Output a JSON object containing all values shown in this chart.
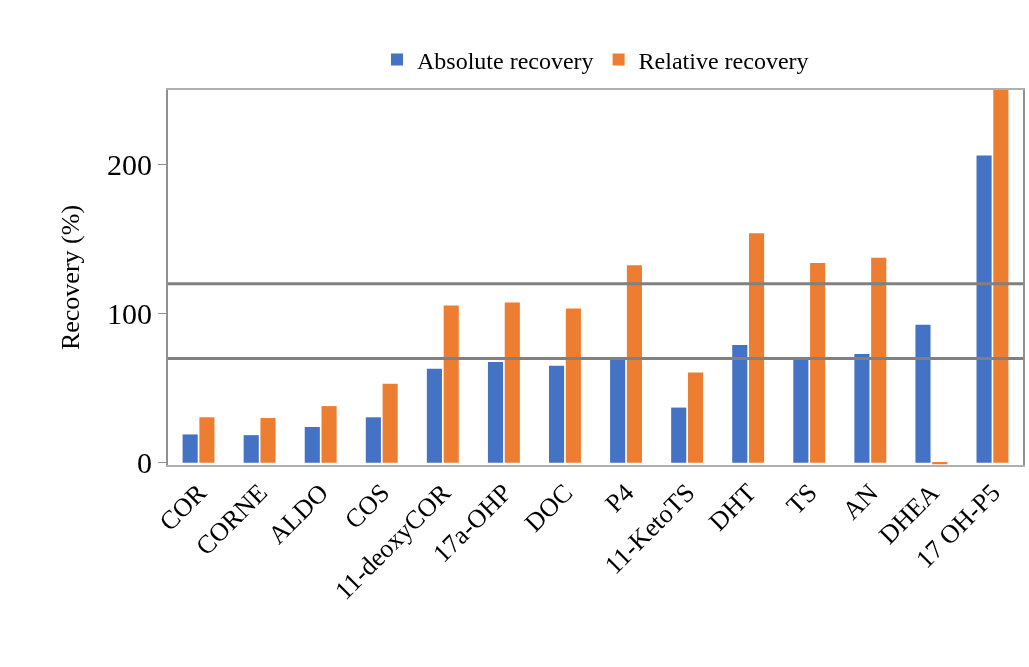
{
  "chart_data": {
    "type": "bar",
    "ylabel": "Recovery (%)",
    "categories": [
      "COR",
      "CORNE",
      "ALDO",
      "COS",
      "11-deoxyCOR",
      "17a-OHP",
      "DOC",
      "P4",
      "11-KetoTS",
      "DHT",
      "TS",
      "AN",
      "DHEA",
      "17 OH-P5"
    ],
    "series": [
      {
        "name": "Absolute recovery",
        "color": "#4472c4",
        "values": [
          19,
          18.5,
          24,
          30.5,
          63,
          67.5,
          65,
          70,
          37,
          79,
          71,
          73,
          92.5,
          206
        ]
      },
      {
        "name": "Relative recovery",
        "color": "#ed7d31",
        "values": [
          30.5,
          30,
          38,
          53,
          105.5,
          107.5,
          103.5,
          132.5,
          60.5,
          154,
          134,
          137.5,
          -1,
          250
        ]
      }
    ],
    "ylim": [
      -1.5,
      250
    ],
    "yticks": [
      0,
      100,
      200
    ],
    "grid": false,
    "legend": "top",
    "ref_lines": [
      {
        "axis": "y",
        "value": 120,
        "color": "#808080"
      },
      {
        "axis": "y",
        "value": 70,
        "color": "#808080"
      }
    ]
  }
}
